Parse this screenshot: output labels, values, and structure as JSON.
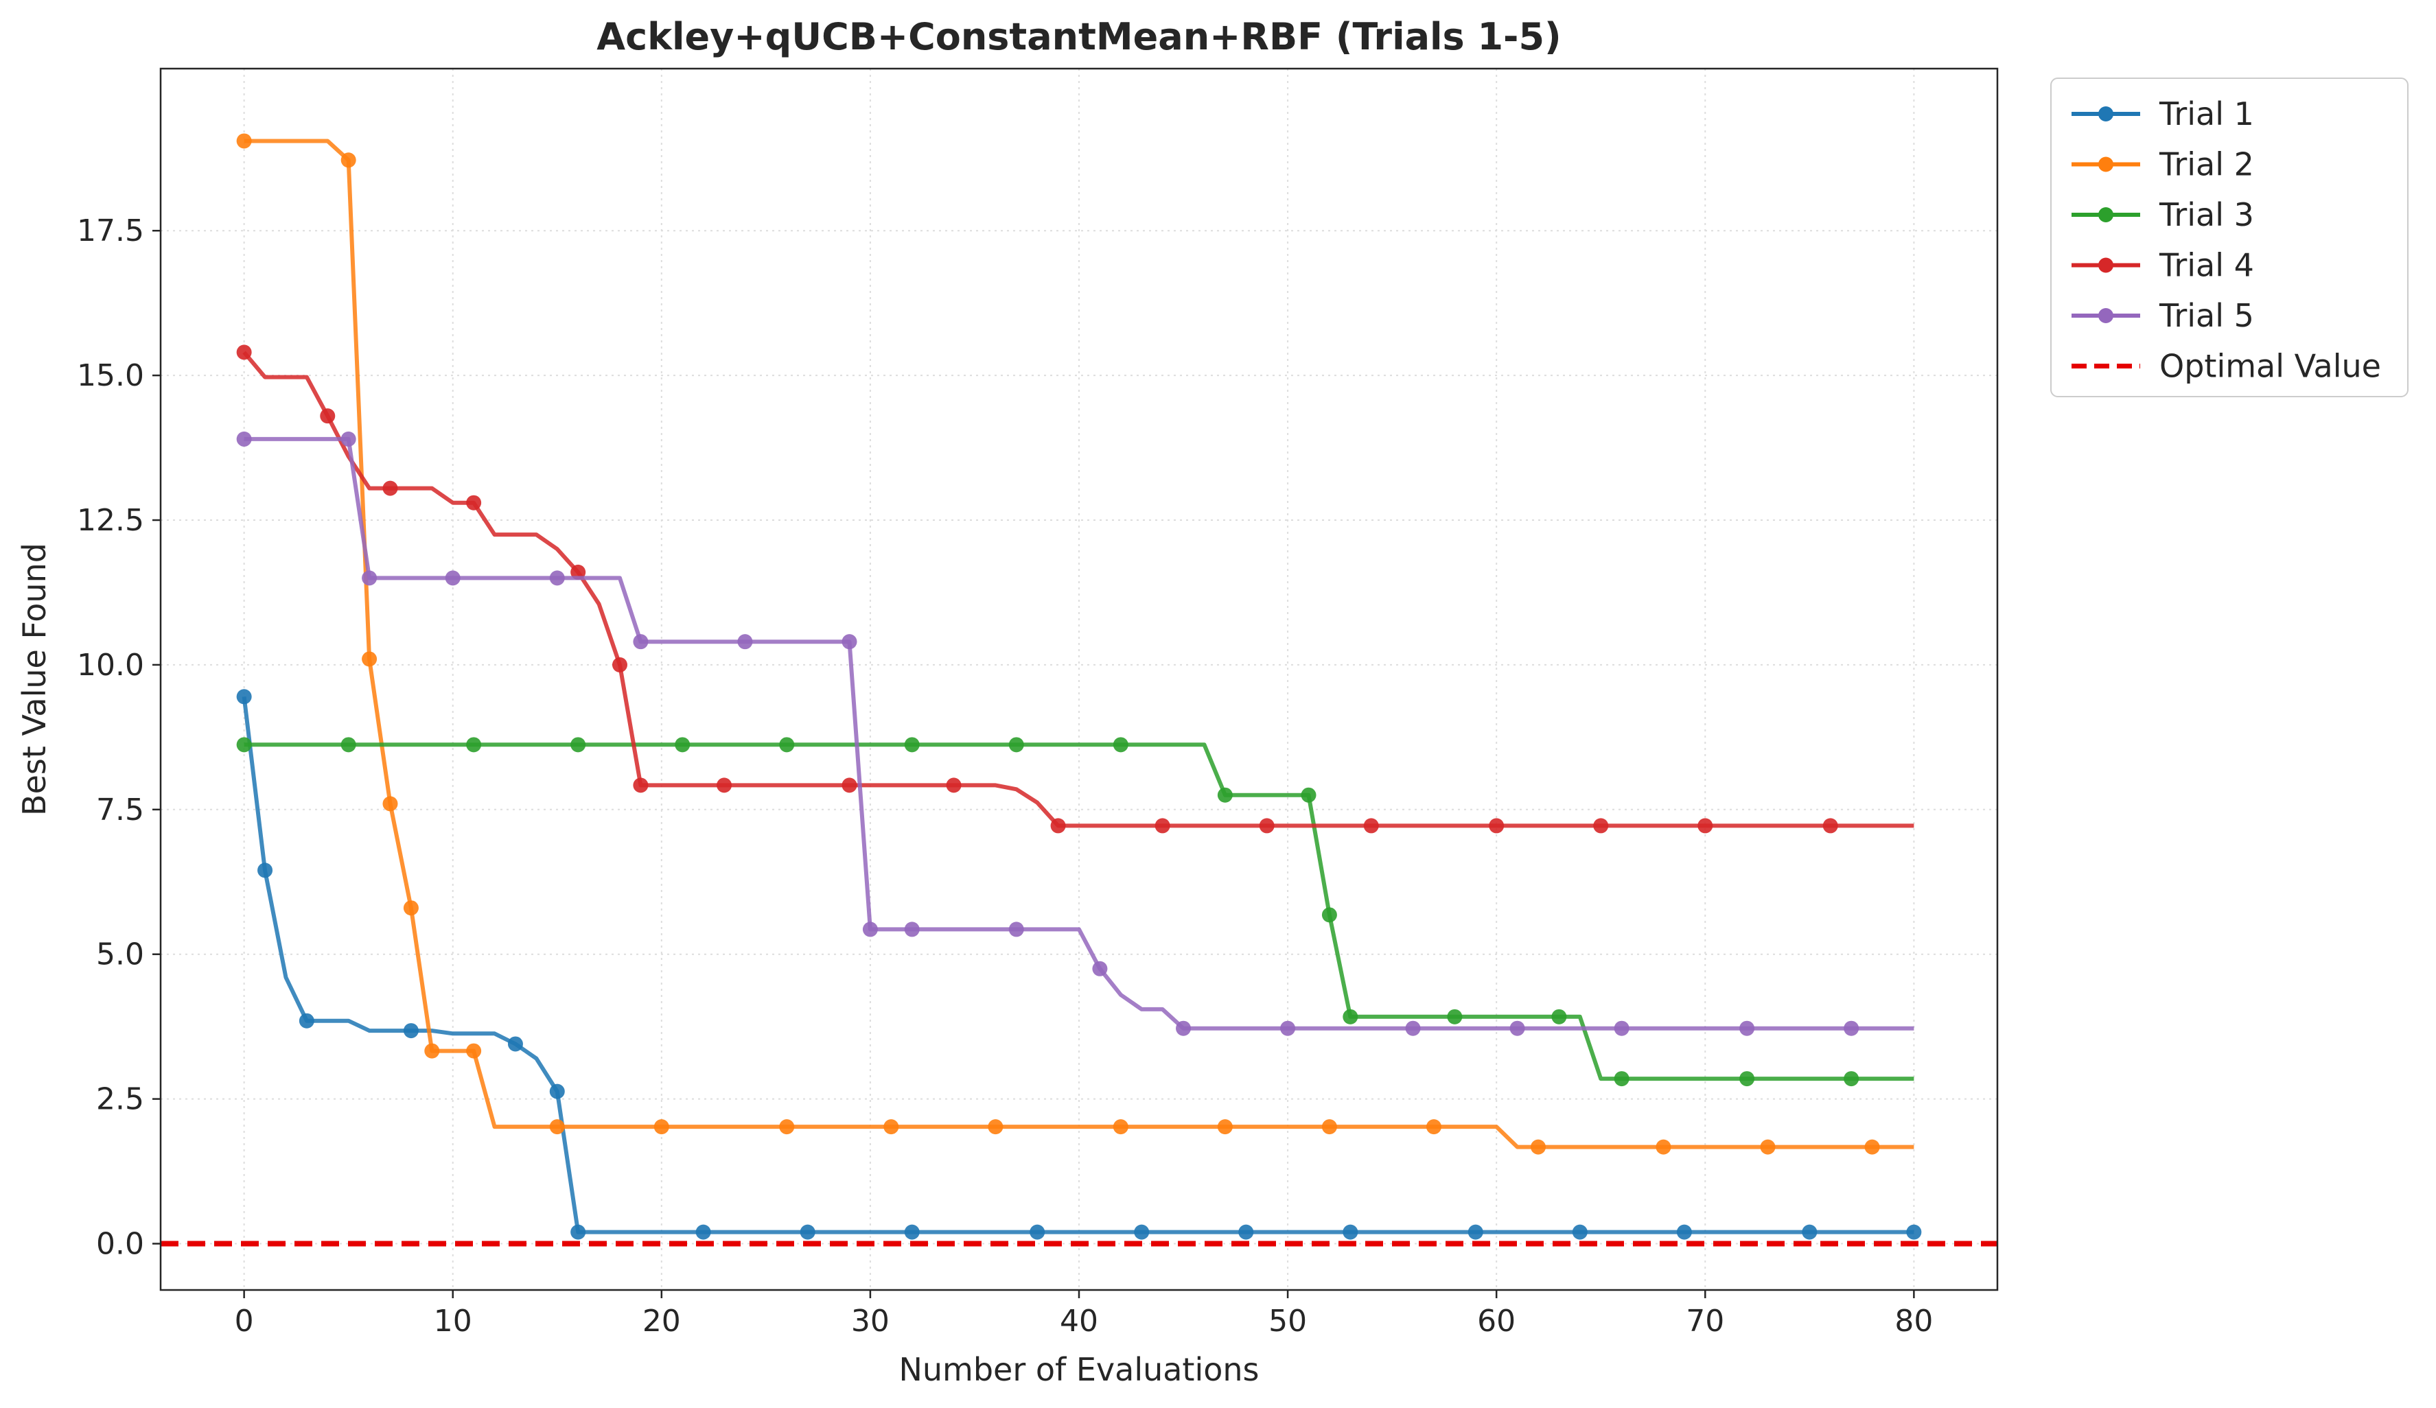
{
  "chart_data": {
    "type": "line",
    "title": "Ackley+qUCB+ConstantMean+RBF (Trials 1-5)",
    "xlabel": "Number of Evaluations",
    "ylabel": "Best Value Found",
    "xlim": [
      -4,
      84
    ],
    "ylim": [
      -0.8,
      20.3
    ],
    "xticks": [
      0,
      10,
      20,
      30,
      40,
      50,
      60,
      70,
      80
    ],
    "yticks": [
      0.0,
      2.5,
      5.0,
      7.5,
      10.0,
      12.5,
      15.0,
      17.5
    ],
    "ytick_labels": [
      "0.0",
      "2.5",
      "5.0",
      "7.5",
      "10.0",
      "12.5",
      "15.0",
      "17.5"
    ],
    "grid": true,
    "legend_position": "outside-top-right",
    "series": [
      {
        "name": "Trial 1",
        "color": "#1f77b4",
        "points": [
          [
            0,
            9.45
          ],
          [
            1,
            6.45
          ],
          [
            2,
            4.6
          ],
          [
            3,
            3.85
          ],
          [
            4,
            3.85
          ],
          [
            5,
            3.85
          ],
          [
            6,
            3.68
          ],
          [
            7,
            3.68
          ],
          [
            8,
            3.68
          ],
          [
            9,
            3.68
          ],
          [
            10,
            3.63
          ],
          [
            11,
            3.63
          ],
          [
            12,
            3.63
          ],
          [
            13,
            3.45
          ],
          [
            14,
            3.2
          ],
          [
            15,
            2.63
          ],
          [
            16,
            0.2
          ],
          [
            80,
            0.2
          ]
        ],
        "markers": [
          0,
          1,
          3,
          8,
          13,
          15,
          16,
          22,
          27,
          32,
          38,
          43,
          48,
          53,
          59,
          64,
          69,
          75,
          80
        ]
      },
      {
        "name": "Trial 2",
        "color": "#ff7f0e",
        "points": [
          [
            0,
            19.05
          ],
          [
            4,
            19.05
          ],
          [
            5,
            18.72
          ],
          [
            6,
            10.1
          ],
          [
            7,
            7.6
          ],
          [
            8,
            5.8
          ],
          [
            9,
            3.33
          ],
          [
            11,
            3.33
          ],
          [
            12,
            2.02
          ],
          [
            60,
            2.02
          ],
          [
            61,
            1.67
          ],
          [
            80,
            1.67
          ]
        ],
        "markers": [
          0,
          5,
          6,
          7,
          8,
          9,
          11,
          15,
          20,
          26,
          31,
          36,
          42,
          47,
          52,
          57,
          62,
          68,
          73,
          78
        ]
      },
      {
        "name": "Trial 3",
        "color": "#2ca02c",
        "points": [
          [
            0,
            8.62
          ],
          [
            46,
            8.62
          ],
          [
            47,
            7.75
          ],
          [
            51,
            7.75
          ],
          [
            52,
            5.68
          ],
          [
            53,
            3.92
          ],
          [
            64,
            3.92
          ],
          [
            65,
            2.85
          ],
          [
            80,
            2.85
          ]
        ],
        "markers": [
          0,
          5,
          11,
          16,
          21,
          26,
          32,
          37,
          42,
          47,
          51,
          52,
          53,
          58,
          63,
          66,
          72,
          77
        ]
      },
      {
        "name": "Trial 4",
        "color": "#d62728",
        "points": [
          [
            0,
            15.4
          ],
          [
            1,
            14.97
          ],
          [
            3,
            14.97
          ],
          [
            4,
            14.3
          ],
          [
            5,
            13.6
          ],
          [
            6,
            13.05
          ],
          [
            9,
            13.05
          ],
          [
            10,
            12.8
          ],
          [
            11,
            12.8
          ],
          [
            12,
            12.25
          ],
          [
            14,
            12.25
          ],
          [
            15,
            12.0
          ],
          [
            16,
            11.6
          ],
          [
            17,
            11.05
          ],
          [
            18,
            10.0
          ],
          [
            19,
            7.92
          ],
          [
            36,
            7.92
          ],
          [
            37,
            7.85
          ],
          [
            38,
            7.62
          ],
          [
            39,
            7.22
          ],
          [
            80,
            7.22
          ]
        ],
        "markers": [
          0,
          4,
          7,
          11,
          16,
          18,
          19,
          23,
          29,
          34,
          39,
          44,
          49,
          54,
          60,
          65,
          70,
          76
        ]
      },
      {
        "name": "Trial 5",
        "color": "#9467bd",
        "points": [
          [
            0,
            13.9
          ],
          [
            5,
            13.9
          ],
          [
            6,
            11.5
          ],
          [
            18,
            11.5
          ],
          [
            19,
            10.4
          ],
          [
            29,
            10.4
          ],
          [
            30,
            5.43
          ],
          [
            40,
            5.43
          ],
          [
            41,
            4.75
          ],
          [
            42,
            4.3
          ],
          [
            43,
            4.05
          ],
          [
            44,
            4.05
          ],
          [
            45,
            3.72
          ],
          [
            80,
            3.72
          ]
        ],
        "markers": [
          0,
          5,
          6,
          10,
          15,
          19,
          24,
          29,
          30,
          32,
          37,
          41,
          45,
          50,
          56,
          61,
          66,
          72,
          77
        ]
      }
    ],
    "reference_line": {
      "name": "Optimal Value",
      "y": 0.0,
      "color": "#e50000",
      "style": "dashed"
    }
  }
}
